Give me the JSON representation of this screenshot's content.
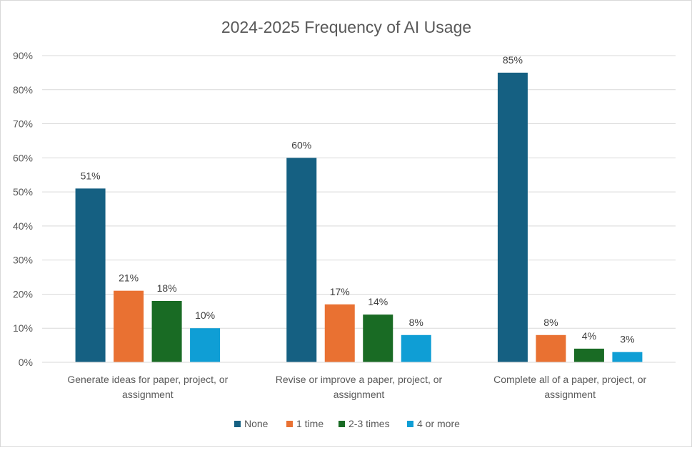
{
  "chart_data": {
    "type": "bar",
    "title": "2024-2025 Frequency of AI Usage",
    "xlabel": "",
    "ylabel": "",
    "ylim": [
      0,
      90
    ],
    "yticks": [
      "0%",
      "10%",
      "20%",
      "30%",
      "40%",
      "50%",
      "60%",
      "70%",
      "80%",
      "90%"
    ],
    "grid": true,
    "legend_position": "bottom",
    "categories": [
      [
        "Generate ideas for paper, project, or",
        "assignment"
      ],
      [
        "Revise or improve a paper, project, or",
        "assignment"
      ],
      [
        "Complete all of a paper, project, or",
        "assignment"
      ]
    ],
    "series": [
      {
        "name": "None",
        "color": "#156082",
        "values": [
          51,
          60,
          85
        ],
        "labels": [
          "51%",
          "60%",
          "85%"
        ]
      },
      {
        "name": "1 time",
        "color": "#E97132",
        "values": [
          21,
          17,
          8
        ],
        "labels": [
          "21%",
          "17%",
          "8%"
        ]
      },
      {
        "name": "2-3 times",
        "color": "#196B24",
        "values": [
          18,
          14,
          4
        ],
        "labels": [
          "18%",
          "14%",
          "4%"
        ]
      },
      {
        "name": "4 or more",
        "color": "#0F9ED5",
        "values": [
          10,
          8,
          3
        ],
        "labels": [
          "10%",
          "8%",
          "3%"
        ]
      }
    ]
  }
}
